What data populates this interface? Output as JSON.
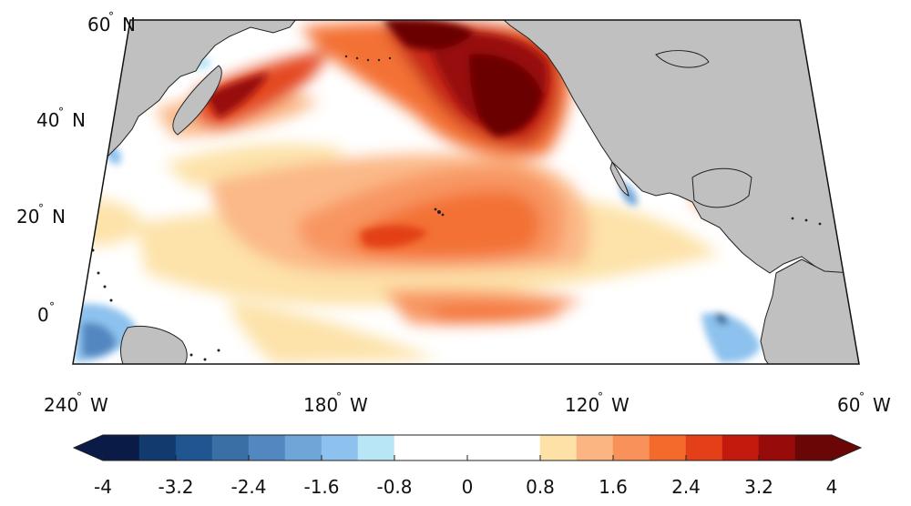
{
  "map": {
    "lat_labels": [
      {
        "value": "60",
        "hemi": "N"
      },
      {
        "value": "40",
        "hemi": "N"
      },
      {
        "value": "20",
        "hemi": "N"
      },
      {
        "value": "0",
        "hemi": ""
      }
    ],
    "lon_labels": [
      {
        "value": "240",
        "hemi": "W"
      },
      {
        "value": "180",
        "hemi": "W"
      },
      {
        "value": "120",
        "hemi": "W"
      },
      {
        "value": "60",
        "hemi": "W"
      }
    ],
    "degree_symbol": "°",
    "extent": {
      "lon": [
        -240,
        -60
      ],
      "lat": [
        -10,
        60
      ]
    },
    "land_color": "#c0c0c0"
  },
  "colorbar": {
    "ticks": [
      "-4",
      "-3.2",
      "-2.4",
      "-1.6",
      "-0.8",
      "0",
      "0.8",
      "1.6",
      "2.4",
      "3.2",
      "4"
    ],
    "range": [
      -4,
      4
    ],
    "bins": [
      {
        "from": -4.0,
        "to": -3.6,
        "color": "#0a1b48"
      },
      {
        "from": -3.6,
        "to": -3.2,
        "color": "#123a6e"
      },
      {
        "from": -3.2,
        "to": -2.8,
        "color": "#1f5590"
      },
      {
        "from": -2.8,
        "to": -2.4,
        "color": "#3a6fa6"
      },
      {
        "from": -2.4,
        "to": -2.0,
        "color": "#5287c0"
      },
      {
        "from": -2.0,
        "to": -1.6,
        "color": "#6ea6d8"
      },
      {
        "from": -1.6,
        "to": -1.2,
        "color": "#8dc2ee"
      },
      {
        "from": -1.2,
        "to": -0.8,
        "color": "#b9e6f7"
      },
      {
        "from": -0.8,
        "to": 0.8,
        "color": "#ffffff"
      },
      {
        "from": 0.8,
        "to": 1.2,
        "color": "#fde1a6"
      },
      {
        "from": 1.2,
        "to": 1.6,
        "color": "#fbb582"
      },
      {
        "from": 1.6,
        "to": 2.0,
        "color": "#f8915a"
      },
      {
        "from": 2.0,
        "to": 2.4,
        "color": "#f36a2c"
      },
      {
        "from": 2.4,
        "to": 2.8,
        "color": "#e33f18"
      },
      {
        "from": 2.8,
        "to": 3.2,
        "color": "#c21b0e"
      },
      {
        "from": 3.2,
        "to": 3.6,
        "color": "#980b0b"
      },
      {
        "from": 3.6,
        "to": 4.0,
        "color": "#6b0606"
      }
    ]
  }
}
